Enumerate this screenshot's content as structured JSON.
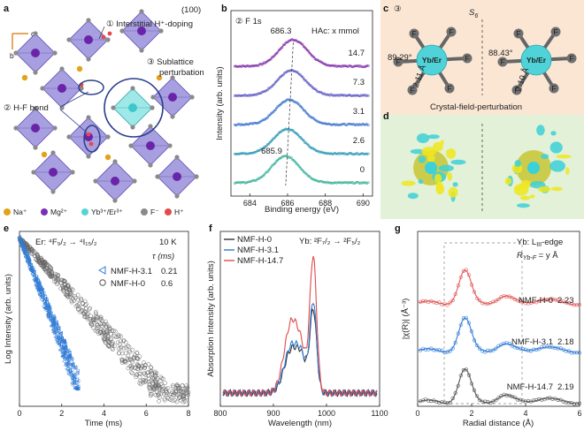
{
  "panel_labels": {
    "a": "a",
    "b": "b",
    "c": "c",
    "d": "d",
    "e": "e",
    "f": "f",
    "g": "g"
  },
  "panel_a": {
    "facet": "(100)",
    "axis_c": "c",
    "axis_b": "b",
    "ann1": "① Interstitial H⁺-doping",
    "ann2": "② H-F bond",
    "ann3_line1": "③ Sublattice",
    "ann3_line2": "perturbation",
    "legend": [
      {
        "label": "Na⁺",
        "color": "#e3a21a"
      },
      {
        "label": "Mg²⁺",
        "color": "#7a2fb5"
      },
      {
        "label": "Yb³⁺/Er³⁺",
        "color": "#57d3d6"
      },
      {
        "label": "F⁻",
        "color": "#8a8a8a"
      },
      {
        "label": "H⁺",
        "color": "#e34b4b"
      }
    ]
  },
  "panel_c": {
    "title": "③",
    "sym": "S",
    "sym_sub": "6",
    "left_angle": "89.29°",
    "left_dist": "2.11 Å",
    "right_angle": "88.43°",
    "right_dist": "2.10 Å",
    "center_label": "Yb/Er",
    "f_labels": [
      "F",
      "F",
      "F",
      "F",
      "F",
      "F"
    ],
    "caption": "Crystal-field-perturbation"
  },
  "chart_data": [
    {
      "panel": "b",
      "type": "line",
      "title": "② F 1s",
      "xlabel": "Binding energy (eV)",
      "ylabel": "Intensity (arb. units)",
      "xlim": [
        683,
        690.5
      ],
      "xticks": [
        684,
        686,
        688,
        690
      ],
      "legend_title": "HAc: x mmol",
      "peak_labels": [
        {
          "text": "686.3",
          "x": 686.3
        },
        {
          "text": "685.9",
          "x": 685.9
        }
      ],
      "series": [
        {
          "name": "14.7",
          "peak": 686.3,
          "color": "#8a3fb0"
        },
        {
          "name": "7.3",
          "peak": 686.2,
          "color": "#6b67c8"
        },
        {
          "name": "3.1",
          "peak": 686.1,
          "color": "#4c7fd0"
        },
        {
          "name": "2.6",
          "peak": 686.0,
          "color": "#3a9fb8"
        },
        {
          "name": "0",
          "peak": 685.9,
          "color": "#49b8a0"
        }
      ]
    },
    {
      "panel": "e",
      "type": "scatter",
      "title": "Er: ⁴F₉/₂ → ⁴I₁₅/₂",
      "temperature": "10 K",
      "tau_header": "τ (ms)",
      "xlabel": "Time (ms)",
      "ylabel": "Log Intensity (arb. units)",
      "xlim": [
        0,
        8
      ],
      "xticks": [
        0,
        2,
        4,
        6,
        8
      ],
      "series": [
        {
          "name": "NMF-H-3.1",
          "tau": "0.21",
          "color": "#2f7bd6"
        },
        {
          "name": "NMF-H-0",
          "tau": "0.6",
          "color": "#555555"
        }
      ]
    },
    {
      "panel": "f",
      "type": "line",
      "title": "Yb: ²F₇/₂ → ²F₅/₂",
      "xlabel": "Wavelength (nm)",
      "ylabel": "Absorption Intensity (arb. units)",
      "xlim": [
        800,
        1100
      ],
      "xticks": [
        800,
        900,
        1000,
        1100
      ],
      "series": [
        {
          "name": "NMF-H-0",
          "color": "#333333",
          "peak": 0.55
        },
        {
          "name": "NMF-H-3.1",
          "color": "#2f7bd6",
          "peak": 0.6
        },
        {
          "name": "NMF-H-14.7",
          "color": "#e04a4a",
          "peak": 0.9
        }
      ]
    },
    {
      "panel": "g",
      "type": "line",
      "title": "Yb: L",
      "title_sub": "III",
      "title_end": "-edge",
      "rlabel": "R",
      "rlabel_sub": "Yb-F",
      "rlabel_end": " = y Å",
      "xlabel": "Radial distance (Å)",
      "ylabel": "|χ(R)| (Å⁻³)",
      "xlim": [
        0,
        6
      ],
      "xticks": [
        0,
        2,
        4,
        6
      ],
      "series": [
        {
          "name": "NMF-H-0",
          "value": "2.23",
          "color": "#e05a5a"
        },
        {
          "name": "NMF-H-3.1",
          "value": "2.18",
          "color": "#2f7bd6"
        },
        {
          "name": "NMF-H-14.7",
          "value": "2.19",
          "color": "#555555"
        }
      ]
    }
  ]
}
